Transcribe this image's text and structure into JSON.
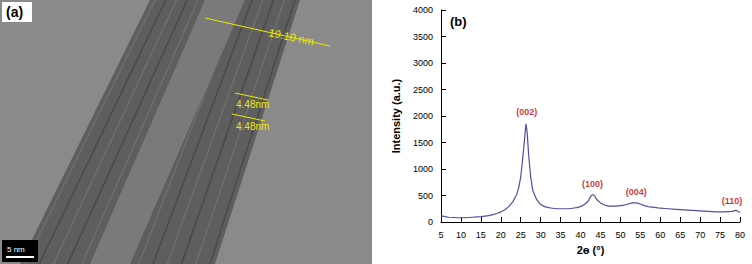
{
  "image_panel": {
    "label": "(a)",
    "annotations": [
      "19.10 nm",
      "4.48nm",
      "4.48nm"
    ],
    "scale_bar": "5 nm"
  },
  "chart_data": {
    "type": "line",
    "title": "(b)",
    "x_label": "2ɵ (°)",
    "y_label": "Intensity (a.u.)",
    "x": [
      5,
      6,
      7,
      8,
      9,
      10,
      11,
      12,
      13,
      14,
      15,
      16,
      17,
      18,
      19,
      20,
      21,
      22,
      23,
      24,
      24.5,
      25,
      25.5,
      26,
      26.3,
      26.6,
      27,
      27.5,
      28,
      29,
      30,
      31,
      32,
      33,
      34,
      35,
      36,
      37,
      38,
      39,
      40,
      41,
      42,
      42.5,
      43,
      43.5,
      44,
      45,
      46,
      47,
      48,
      49,
      50,
      51,
      52,
      53,
      54,
      55,
      56,
      57,
      58,
      59,
      60,
      62,
      64,
      66,
      68,
      70,
      72,
      74,
      76,
      78,
      79,
      80
    ],
    "values": [
      120,
      100,
      90,
      85,
      80,
      80,
      80,
      85,
      90,
      95,
      100,
      110,
      120,
      140,
      160,
      190,
      230,
      290,
      380,
      520,
      650,
      850,
      1200,
      1600,
      1850,
      1700,
      1250,
      850,
      600,
      420,
      330,
      290,
      270,
      260,
      250,
      250,
      250,
      250,
      260,
      270,
      290,
      330,
      400,
      480,
      520,
      500,
      430,
      360,
      320,
      300,
      300,
      300,
      310,
      320,
      340,
      360,
      360,
      340,
      310,
      290,
      280,
      270,
      260,
      250,
      240,
      230,
      220,
      210,
      200,
      190,
      190,
      200,
      220,
      180
    ],
    "color": "#4f4f9f",
    "annotations": [
      {
        "text": "(002)",
        "x": 26.5,
        "y": 1950
      },
      {
        "text": "(100)",
        "x": 43,
        "y": 600
      },
      {
        "text": "(004)",
        "x": 54,
        "y": 440
      },
      {
        "text": "(110)",
        "x": 78,
        "y": 280
      }
    ],
    "xlim": [
      5,
      80
    ],
    "xticks": [
      5,
      10,
      15,
      20,
      25,
      30,
      35,
      40,
      45,
      50,
      55,
      60,
      65,
      70,
      75,
      80
    ],
    "ylim": [
      0,
      4000
    ],
    "yticks": [
      0,
      500,
      1000,
      1500,
      2000,
      2500,
      3000,
      3500,
      4000
    ],
    "grid": false
  }
}
